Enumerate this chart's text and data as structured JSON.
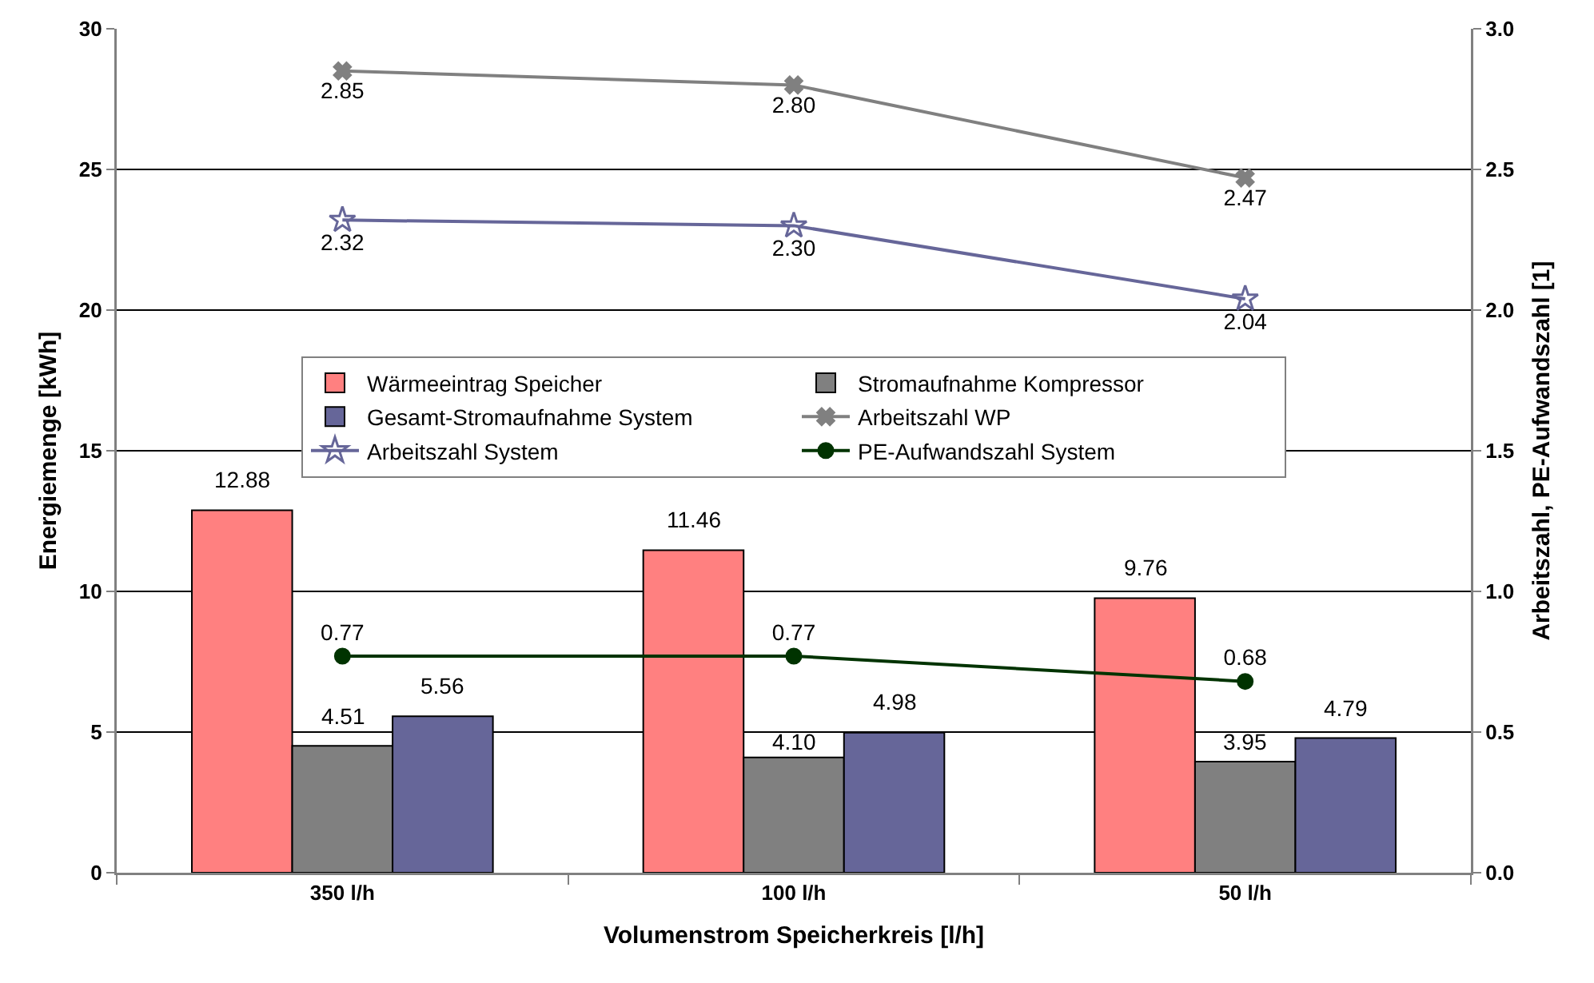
{
  "chart_data": {
    "type": "bar",
    "xlabel": "Volumenstrom Speicherkreis [l/h]",
    "ylabel": "Energiemenge [kWh]",
    "y2label": "Arbeitszahl, PE-Aufwandszahl [1]",
    "categories": [
      "350 l/h",
      "100 l/h",
      "50 l/h"
    ],
    "series": [
      {
        "name": "Wärmeeintrag Speicher",
        "color": "#ff8080",
        "values": [
          12.88,
          11.46,
          9.76
        ],
        "value_labels": [
          "12.88",
          "11.46",
          "9.76"
        ]
      },
      {
        "name": "Stromaufnahme Kompressor",
        "color": "#808080",
        "values": [
          4.51,
          4.1,
          3.95
        ],
        "value_labels": [
          "4.51",
          "4.10",
          "3.95"
        ]
      },
      {
        "name": "Gesamt-Stromaufnahme System",
        "color": "#666699",
        "values": [
          5.56,
          4.98,
          4.79
        ],
        "value_labels": [
          "5.56",
          "4.98",
          "4.79"
        ]
      },
      {
        "name": "Arbeitszahl WP",
        "type": "line",
        "axis": "y2",
        "color": "#808080",
        "marker": "cross",
        "values": [
          2.85,
          2.8,
          2.47
        ],
        "value_labels": [
          "2.85",
          "2.80",
          "2.47"
        ]
      },
      {
        "name": "Arbeitszahl System",
        "type": "line",
        "axis": "y2",
        "color": "#666699",
        "marker": "star",
        "values": [
          2.32,
          2.3,
          2.04
        ],
        "value_labels": [
          "2.32",
          "2.30",
          "2.04"
        ]
      },
      {
        "name": "PE-Aufwandszahl System",
        "type": "line",
        "axis": "y2",
        "color": "#003300",
        "marker": "circle",
        "values": [
          0.77,
          0.77,
          0.68
        ],
        "value_labels": [
          "0.77",
          "0.77",
          "0.68"
        ]
      }
    ],
    "ylim": [
      0,
      30
    ],
    "yticks": [
      0,
      5,
      10,
      15,
      20,
      25,
      30
    ],
    "y2lim": [
      0,
      3
    ],
    "y2ticks": [
      {
        "value": 0,
        "label": "0.0"
      },
      {
        "value": 0.5,
        "label": "0.5"
      },
      {
        "value": 1,
        "label": "1.0"
      },
      {
        "value": 1.5,
        "label": "1.5"
      },
      {
        "value": 2,
        "label": "2.0"
      },
      {
        "value": 2.5,
        "label": "2.5"
      },
      {
        "value": 3,
        "label": "3.0"
      }
    ],
    "grid": "y",
    "legend": "center"
  }
}
